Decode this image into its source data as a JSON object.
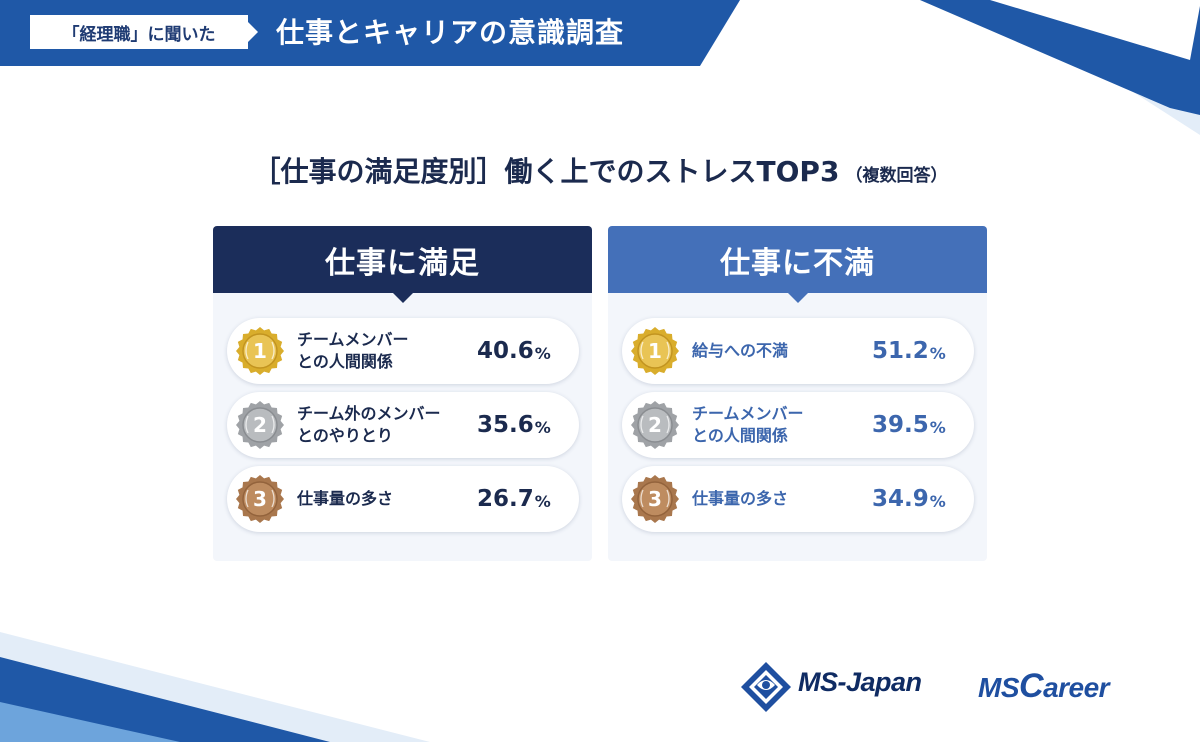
{
  "banner": {
    "chip": "「経理職」に聞いた",
    "title": "仕事とキャリアの意識調査"
  },
  "chart_data": {
    "type": "table",
    "title": "［仕事の満足度別］働く上でのストレスTOP3",
    "title_note": "（複数回答）",
    "groups": [
      {
        "name": "仕事に満足",
        "color": "#1b2d5a",
        "items": [
          {
            "rank": "1",
            "label_lines": [
              "チームメンバー",
              "との人間関係"
            ],
            "value": 40.6
          },
          {
            "rank": "2",
            "label_lines": [
              "チーム外のメンバー",
              "とのやりとり"
            ],
            "value": 35.6
          },
          {
            "rank": "3",
            "label_lines": [
              "仕事量の多さ"
            ],
            "value": 26.7
          }
        ]
      },
      {
        "name": "仕事に不満",
        "color": "#4470b9",
        "items": [
          {
            "rank": "1",
            "label_lines": [
              "給与への不満"
            ],
            "value": 51.2
          },
          {
            "rank": "2",
            "label_lines": [
              "チームメンバー",
              "との人間関係"
            ],
            "value": 39.5
          },
          {
            "rank": "3",
            "label_lines": [
              "仕事量の多さ"
            ],
            "value": 34.9
          }
        ]
      }
    ],
    "unit": "%"
  },
  "medal_colors": {
    "1": {
      "outer": "#d9ad2c",
      "inner": "#e9c455",
      "ring": "#c29420"
    },
    "2": {
      "outer": "#9fa2a6",
      "inner": "#b9bcbf",
      "ring": "#8a8d91"
    },
    "3": {
      "outer": "#a9774d",
      "inner": "#be8c60",
      "ring": "#93633c"
    }
  },
  "logos": {
    "ms_japan": "MS-Japan",
    "ms_career_prefix": "MS",
    "ms_career_c": "C",
    "ms_career_suffix": "areer"
  }
}
